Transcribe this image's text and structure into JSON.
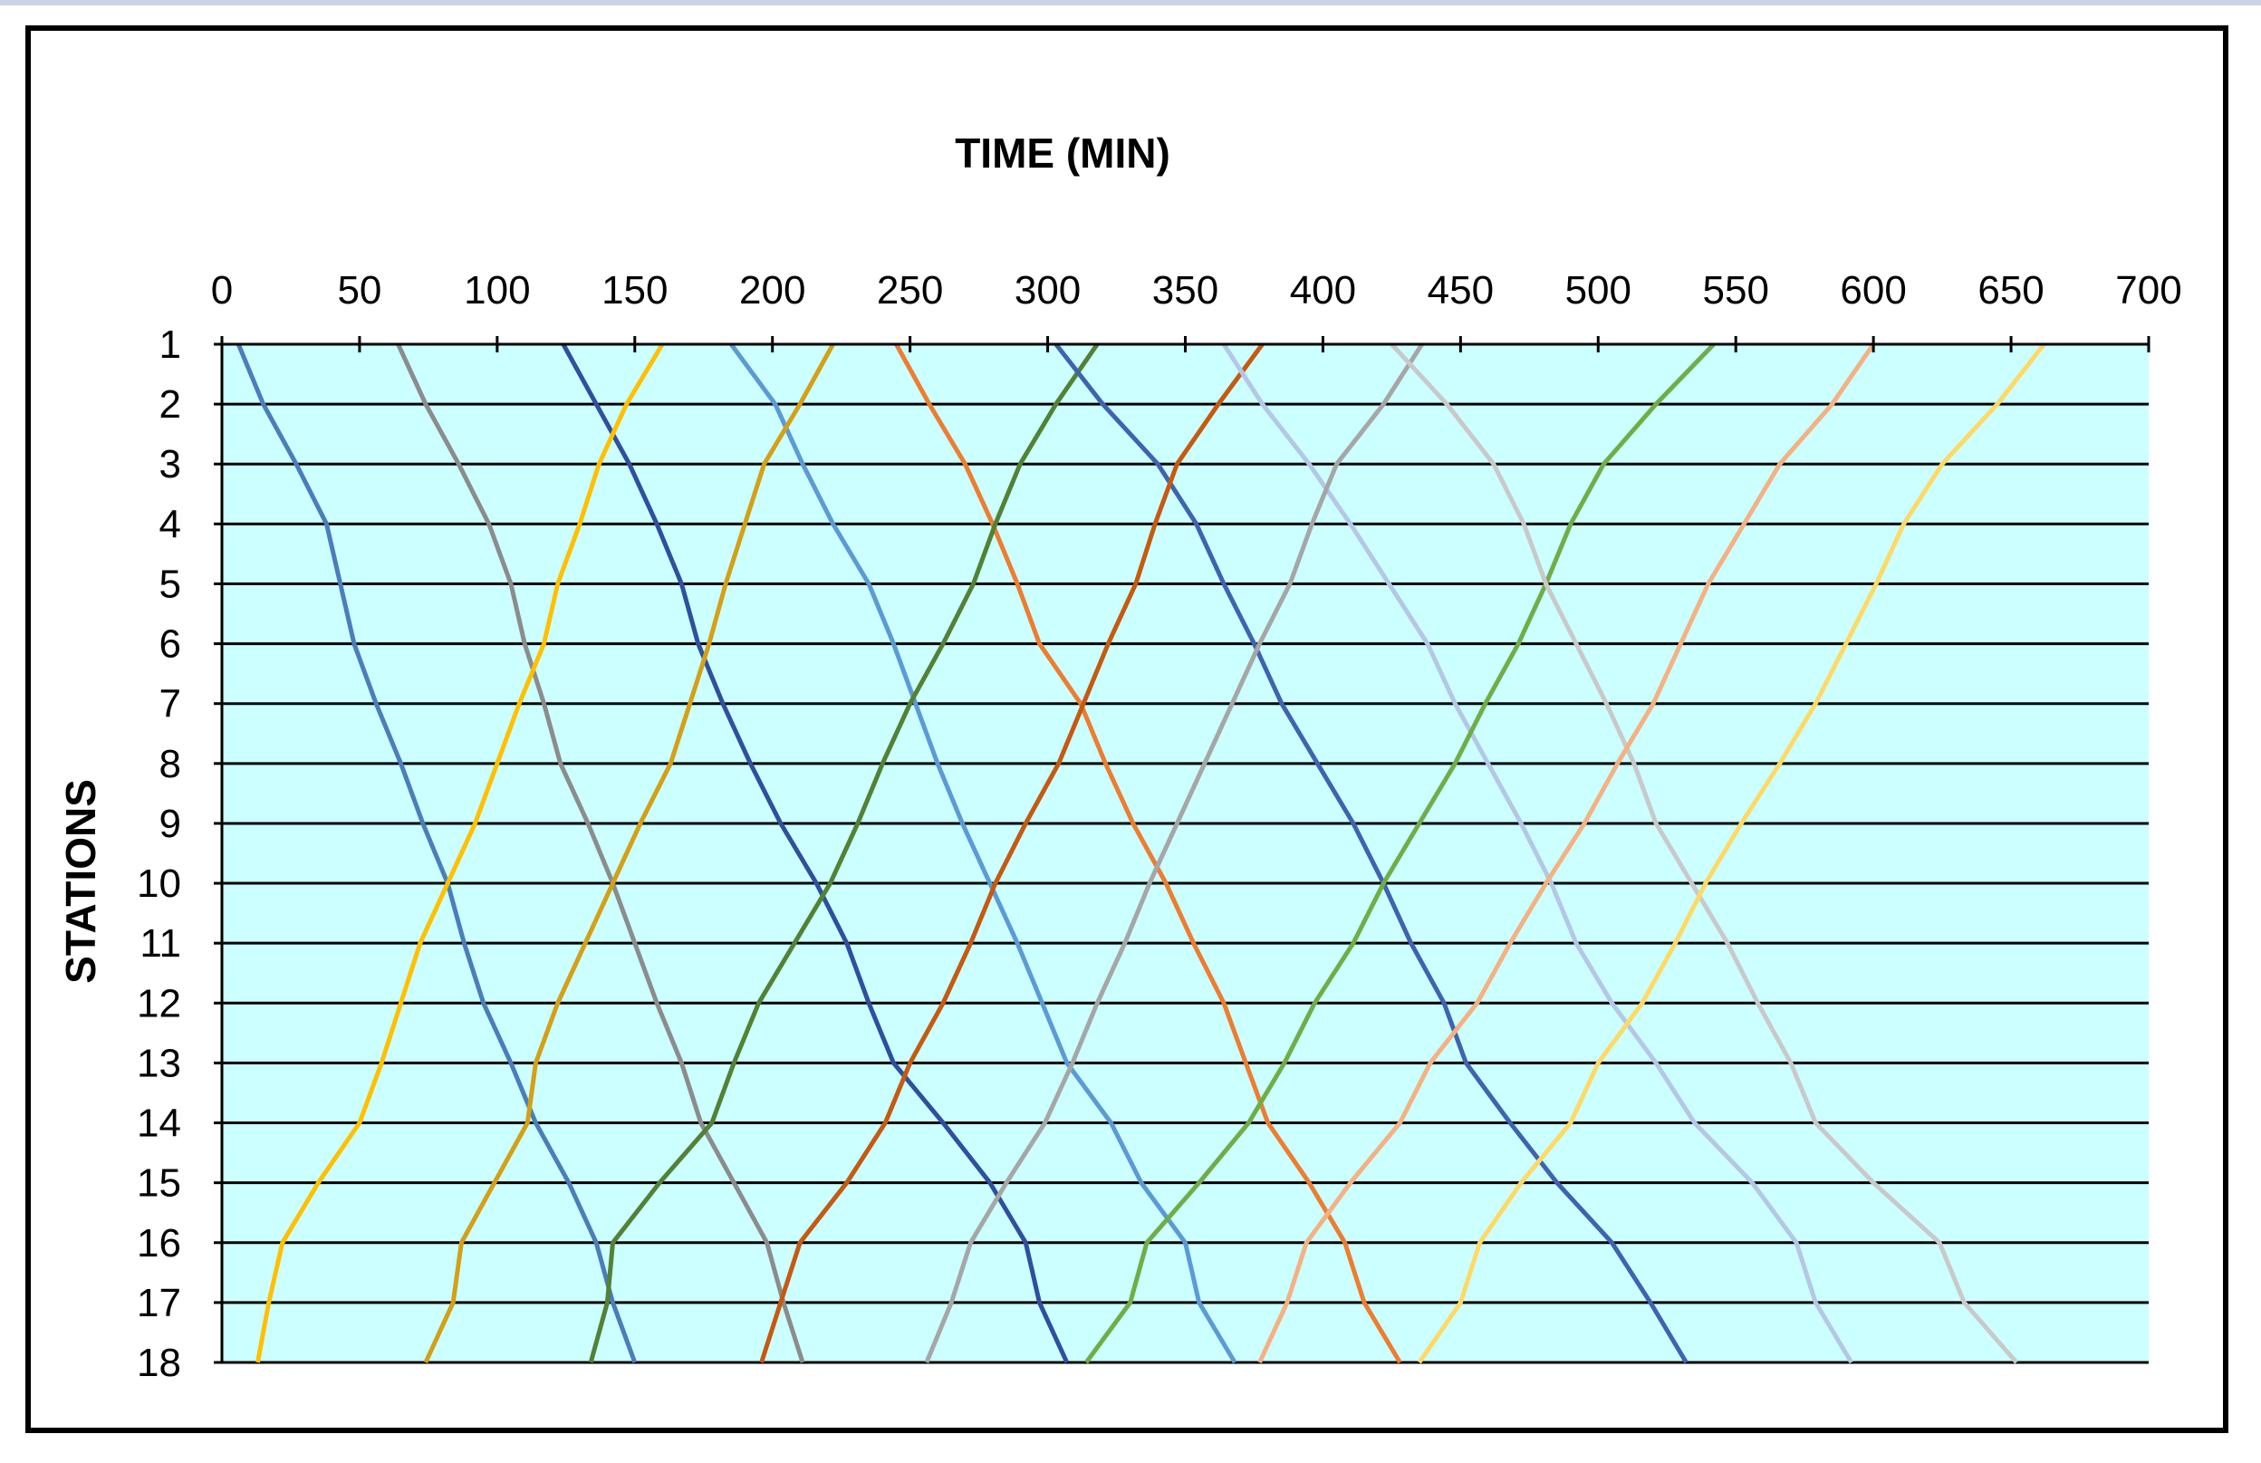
{
  "chart_data": {
    "type": "line",
    "title": "",
    "xlabel": "TIME (MIN)",
    "ylabel": "STATIONS",
    "xlim": [
      0,
      700
    ],
    "x_ticks": [
      "0",
      "50",
      "100",
      "150",
      "200",
      "250",
      "300",
      "350",
      "400",
      "450",
      "500",
      "550",
      "600",
      "650",
      "700"
    ],
    "ylim": [
      1,
      18
    ],
    "y_ticks": [
      "1",
      "2",
      "3",
      "4",
      "5",
      "6",
      "7",
      "8",
      "9",
      "10",
      "11",
      "12",
      "13",
      "14",
      "15",
      "16",
      "17",
      "18"
    ],
    "x_axis_position": "top",
    "y_axis_reversed": true,
    "grid": "horizontal",
    "plot_background": "#ccffff",
    "legend": "none",
    "series": [
      {
        "color": "#4a7ebb",
        "points": [
          [
            6,
            1
          ],
          [
            15,
            2
          ],
          [
            27,
            3
          ],
          [
            38,
            4
          ],
          [
            43,
            5
          ],
          [
            48,
            6
          ],
          [
            56,
            7
          ],
          [
            65,
            8
          ],
          [
            73,
            9
          ],
          [
            82,
            10
          ],
          [
            88,
            11
          ],
          [
            95,
            12
          ],
          [
            105,
            13
          ],
          [
            114,
            14
          ],
          [
            126,
            15
          ],
          [
            136,
            16
          ],
          [
            142,
            17
          ],
          [
            150,
            18
          ]
        ]
      },
      {
        "color": "#8c8c8c",
        "points": [
          [
            64,
            1
          ],
          [
            74,
            2
          ],
          [
            86,
            3
          ],
          [
            97,
            4
          ],
          [
            105,
            5
          ],
          [
            110,
            6
          ],
          [
            117,
            7
          ],
          [
            123,
            8
          ],
          [
            133,
            9
          ],
          [
            142,
            10
          ],
          [
            150,
            11
          ],
          [
            158,
            12
          ],
          [
            167,
            13
          ],
          [
            174,
            14
          ],
          [
            186,
            15
          ],
          [
            198,
            16
          ],
          [
            204,
            17
          ],
          [
            211,
            18
          ]
        ]
      },
      {
        "color": "#2f4f9f",
        "points": [
          [
            124,
            1
          ],
          [
            136,
            2
          ],
          [
            148,
            3
          ],
          [
            158,
            4
          ],
          [
            167,
            5
          ],
          [
            173,
            6
          ],
          [
            182,
            7
          ],
          [
            192,
            8
          ],
          [
            203,
            9
          ],
          [
            216,
            10
          ],
          [
            227,
            11
          ],
          [
            235,
            12
          ],
          [
            244,
            13
          ],
          [
            262,
            14
          ],
          [
            279,
            15
          ],
          [
            292,
            16
          ],
          [
            297,
            17
          ],
          [
            307,
            18
          ]
        ]
      },
      {
        "color": "#ffc000",
        "points": [
          [
            160,
            1
          ],
          [
            147,
            2
          ],
          [
            137,
            3
          ],
          [
            130,
            4
          ],
          [
            122,
            5
          ],
          [
            117,
            6
          ],
          [
            108,
            7
          ],
          [
            100,
            8
          ],
          [
            92,
            9
          ],
          [
            82,
            10
          ],
          [
            72,
            11
          ],
          [
            65,
            12
          ],
          [
            58,
            13
          ],
          [
            50,
            14
          ],
          [
            35,
            15
          ],
          [
            22,
            16
          ],
          [
            17,
            17
          ],
          [
            13,
            18
          ]
        ]
      },
      {
        "color": "#5b9bd5",
        "points": [
          [
            185,
            1
          ],
          [
            201,
            2
          ],
          [
            211,
            3
          ],
          [
            222,
            4
          ],
          [
            235,
            5
          ],
          [
            244,
            6
          ],
          [
            252,
            7
          ],
          [
            260,
            8
          ],
          [
            269,
            9
          ],
          [
            279,
            10
          ],
          [
            289,
            11
          ],
          [
            298,
            12
          ],
          [
            307,
            13
          ],
          [
            323,
            14
          ],
          [
            334,
            15
          ],
          [
            350,
            16
          ],
          [
            355,
            17
          ],
          [
            368,
            18
          ]
        ]
      },
      {
        "color": "#d4a017",
        "points": [
          [
            222,
            1
          ],
          [
            210,
            2
          ],
          [
            197,
            3
          ],
          [
            190,
            4
          ],
          [
            183,
            5
          ],
          [
            177,
            6
          ],
          [
            170,
            7
          ],
          [
            163,
            8
          ],
          [
            152,
            9
          ],
          [
            142,
            10
          ],
          [
            132,
            11
          ],
          [
            122,
            12
          ],
          [
            114,
            13
          ],
          [
            111,
            14
          ],
          [
            99,
            15
          ],
          [
            87,
            16
          ],
          [
            84,
            17
          ],
          [
            74,
            18
          ]
        ]
      },
      {
        "color": "#ed7d31",
        "points": [
          [
            245,
            1
          ],
          [
            257,
            2
          ],
          [
            270,
            3
          ],
          [
            280,
            4
          ],
          [
            289,
            5
          ],
          [
            297,
            6
          ],
          [
            312,
            7
          ],
          [
            321,
            8
          ],
          [
            331,
            9
          ],
          [
            343,
            10
          ],
          [
            353,
            11
          ],
          [
            364,
            12
          ],
          [
            372,
            13
          ],
          [
            380,
            14
          ],
          [
            395,
            15
          ],
          [
            408,
            16
          ],
          [
            415,
            17
          ],
          [
            428,
            18
          ]
        ]
      },
      {
        "color": "#538135",
        "points": [
          [
            318,
            1
          ],
          [
            303,
            2
          ],
          [
            290,
            3
          ],
          [
            281,
            4
          ],
          [
            273,
            5
          ],
          [
            262,
            6
          ],
          [
            250,
            7
          ],
          [
            240,
            8
          ],
          [
            231,
            9
          ],
          [
            221,
            10
          ],
          [
            208,
            11
          ],
          [
            195,
            12
          ],
          [
            186,
            13
          ],
          [
            178,
            14
          ],
          [
            159,
            15
          ],
          [
            142,
            16
          ],
          [
            140,
            17
          ],
          [
            134,
            18
          ]
        ]
      },
      {
        "color": "#3f63b0",
        "points": [
          [
            303,
            1
          ],
          [
            320,
            2
          ],
          [
            340,
            3
          ],
          [
            354,
            4
          ],
          [
            364,
            5
          ],
          [
            375,
            6
          ],
          [
            385,
            7
          ],
          [
            398,
            8
          ],
          [
            411,
            9
          ],
          [
            422,
            10
          ],
          [
            432,
            11
          ],
          [
            444,
            12
          ],
          [
            452,
            13
          ],
          [
            468,
            14
          ],
          [
            485,
            15
          ],
          [
            505,
            16
          ],
          [
            519,
            17
          ],
          [
            532,
            18
          ]
        ]
      },
      {
        "color": "#c55a11",
        "points": [
          [
            378,
            1
          ],
          [
            362,
            2
          ],
          [
            347,
            3
          ],
          [
            339,
            4
          ],
          [
            332,
            5
          ],
          [
            322,
            6
          ],
          [
            313,
            7
          ],
          [
            304,
            8
          ],
          [
            292,
            9
          ],
          [
            281,
            10
          ],
          [
            272,
            11
          ],
          [
            262,
            12
          ],
          [
            250,
            13
          ],
          [
            241,
            14
          ],
          [
            227,
            15
          ],
          [
            210,
            16
          ],
          [
            203,
            17
          ],
          [
            196,
            18
          ]
        ]
      },
      {
        "color": "#b4c7e7",
        "points": [
          [
            364,
            1
          ],
          [
            378,
            2
          ],
          [
            395,
            3
          ],
          [
            410,
            4
          ],
          [
            424,
            5
          ],
          [
            438,
            6
          ],
          [
            448,
            7
          ],
          [
            460,
            8
          ],
          [
            472,
            9
          ],
          [
            483,
            10
          ],
          [
            492,
            11
          ],
          [
            505,
            12
          ],
          [
            521,
            13
          ],
          [
            535,
            14
          ],
          [
            556,
            15
          ],
          [
            572,
            16
          ],
          [
            579,
            17
          ],
          [
            592,
            18
          ]
        ]
      },
      {
        "color": "#a6a6a6",
        "points": [
          [
            436,
            1
          ],
          [
            422,
            2
          ],
          [
            405,
            3
          ],
          [
            396,
            4
          ],
          [
            388,
            5
          ],
          [
            377,
            6
          ],
          [
            367,
            7
          ],
          [
            357,
            8
          ],
          [
            347,
            9
          ],
          [
            337,
            10
          ],
          [
            328,
            11
          ],
          [
            318,
            12
          ],
          [
            309,
            13
          ],
          [
            299,
            14
          ],
          [
            285,
            15
          ],
          [
            272,
            16
          ],
          [
            265,
            17
          ],
          [
            256,
            18
          ]
        ]
      },
      {
        "color": "#70ad47",
        "points": [
          [
            542,
            1
          ],
          [
            521,
            2
          ],
          [
            502,
            3
          ],
          [
            490,
            4
          ],
          [
            481,
            5
          ],
          [
            471,
            6
          ],
          [
            459,
            7
          ],
          [
            448,
            8
          ],
          [
            435,
            9
          ],
          [
            422,
            10
          ],
          [
            411,
            11
          ],
          [
            397,
            12
          ],
          [
            386,
            13
          ],
          [
            373,
            14
          ],
          [
            355,
            15
          ],
          [
            336,
            16
          ],
          [
            330,
            17
          ],
          [
            314,
            18
          ]
        ]
      },
      {
        "color": "#c9c9c9",
        "points": [
          [
            425,
            1
          ],
          [
            445,
            2
          ],
          [
            462,
            3
          ],
          [
            473,
            4
          ],
          [
            481,
            5
          ],
          [
            492,
            6
          ],
          [
            503,
            7
          ],
          [
            513,
            8
          ],
          [
            521,
            9
          ],
          [
            534,
            10
          ],
          [
            547,
            11
          ],
          [
            558,
            12
          ],
          [
            570,
            13
          ],
          [
            579,
            14
          ],
          [
            600,
            15
          ],
          [
            624,
            16
          ],
          [
            633,
            17
          ],
          [
            652,
            18
          ]
        ]
      },
      {
        "color": "#f4b183",
        "points": [
          [
            600,
            1
          ],
          [
            585,
            2
          ],
          [
            566,
            3
          ],
          [
            553,
            4
          ],
          [
            540,
            5
          ],
          [
            530,
            6
          ],
          [
            520,
            7
          ],
          [
            507,
            8
          ],
          [
            495,
            9
          ],
          [
            481,
            10
          ],
          [
            468,
            11
          ],
          [
            456,
            12
          ],
          [
            439,
            13
          ],
          [
            428,
            14
          ],
          [
            410,
            15
          ],
          [
            394,
            16
          ],
          [
            387,
            17
          ],
          [
            377,
            18
          ]
        ]
      },
      {
        "color": "#ffd966",
        "points": [
          [
            662,
            1
          ],
          [
            645,
            2
          ],
          [
            625,
            3
          ],
          [
            611,
            4
          ],
          [
            601,
            5
          ],
          [
            590,
            6
          ],
          [
            579,
            7
          ],
          [
            566,
            8
          ],
          [
            552,
            9
          ],
          [
            539,
            10
          ],
          [
            528,
            11
          ],
          [
            516,
            12
          ],
          [
            500,
            13
          ],
          [
            490,
            14
          ],
          [
            472,
            15
          ],
          [
            457,
            16
          ],
          [
            450,
            17
          ],
          [
            435,
            18
          ]
        ]
      }
    ]
  }
}
